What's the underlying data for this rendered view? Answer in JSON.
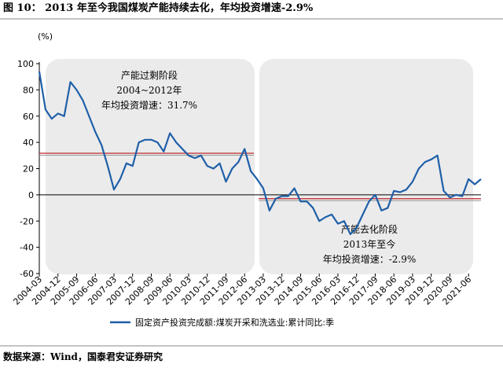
{
  "chart_data": {
    "type": "line",
    "title": "图 10：  2013 年至今我国煤炭产能持续去化，年均投资增速-2.9%",
    "unit": "(%)",
    "source": "数据来源：Wind，国泰君安证券研究",
    "categories": [
      "2004-03",
      null,
      null,
      "2004-12",
      null,
      null,
      "2005-09",
      null,
      null,
      "2006-06",
      null,
      null,
      "2007-03",
      null,
      null,
      "2007-12",
      null,
      null,
      "2008-09",
      null,
      null,
      "2009-06",
      null,
      null,
      "2010-03",
      null,
      null,
      "2010-12",
      null,
      null,
      "2011-09",
      null,
      null,
      "2012-06",
      null,
      null,
      "2013-03",
      null,
      null,
      "2013-12",
      null,
      null,
      "2014-09",
      null,
      null,
      "2015-06",
      null,
      null,
      "2016-03",
      null,
      null,
      "2016-12",
      null,
      null,
      "2017-09",
      null,
      null,
      "2018-06",
      null,
      null,
      "2019-03",
      null,
      null,
      "2019-12",
      null,
      null,
      "2020-09",
      null,
      null,
      "2021-06",
      null,
      null
    ],
    "series": [
      {
        "name": "固定资产投资完成额:煤炭开采和洗选业:累计同比:季",
        "color": "#1f5fa8",
        "values": [
          94,
          65,
          58,
          62,
          60,
          86,
          80,
          72,
          60,
          48,
          38,
          22,
          4,
          12,
          24,
          22,
          40,
          42,
          42,
          40,
          33,
          47,
          40,
          35,
          30,
          28,
          30,
          22,
          20,
          24,
          10,
          20,
          25,
          35,
          18,
          12,
          5,
          -12,
          -3,
          -1,
          -1,
          5,
          -5,
          -5,
          -10,
          -20,
          -17,
          -15,
          -22,
          -20,
          -30,
          -25,
          -15,
          -5,
          0,
          -12,
          -10,
          3,
          2,
          4,
          10,
          20,
          25,
          27,
          30,
          3,
          -2,
          0,
          -1,
          12,
          8,
          12
        ]
      }
    ],
    "periods": [
      {
        "lines": [
          "产能过剩阶段",
          "2004~2012年",
          "年均投资增速：31.7%"
        ],
        "average": 31.7
      },
      {
        "lines": [
          "产能去化阶段",
          "2013年至今",
          "年均投资增速：-2.9%"
        ],
        "average": -2.9
      }
    ],
    "ylim": [
      -60,
      100
    ],
    "yticks": [
      -60,
      -40,
      -20,
      0,
      20,
      40,
      60,
      80,
      100
    ],
    "average_color": "#c0282a"
  }
}
